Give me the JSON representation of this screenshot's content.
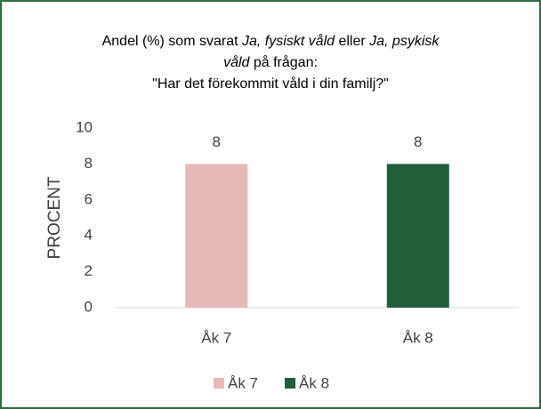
{
  "chart_data": {
    "type": "bar",
    "title": [
      [
        {
          "text": "Andel (%) som svarat "
        },
        {
          "text": "Ja, fysiskt våld",
          "italic": true
        },
        {
          "text": " eller "
        },
        {
          "text": "Ja, psykisk",
          "italic": true
        }
      ],
      [
        {
          "text": "våld",
          "italic": true
        },
        {
          "text": " på frågan:"
        }
      ],
      [
        {
          "text": "\"Har det förekommit våld i din familj?\""
        }
      ]
    ],
    "y_label": "PROCENT",
    "categories": [
      "Åk 7",
      "Åk 8"
    ],
    "series": [
      {
        "name": "Åk 7",
        "color": "#e6b8b7",
        "values": [
          8,
          null
        ]
      },
      {
        "name": "Åk 8",
        "color": "#215f3a",
        "values": [
          null,
          8
        ]
      }
    ],
    "ylim": [
      0,
      10
    ],
    "yticks": [
      0,
      2,
      4,
      6,
      8,
      10
    ],
    "grid": false,
    "legend": "bottom"
  }
}
